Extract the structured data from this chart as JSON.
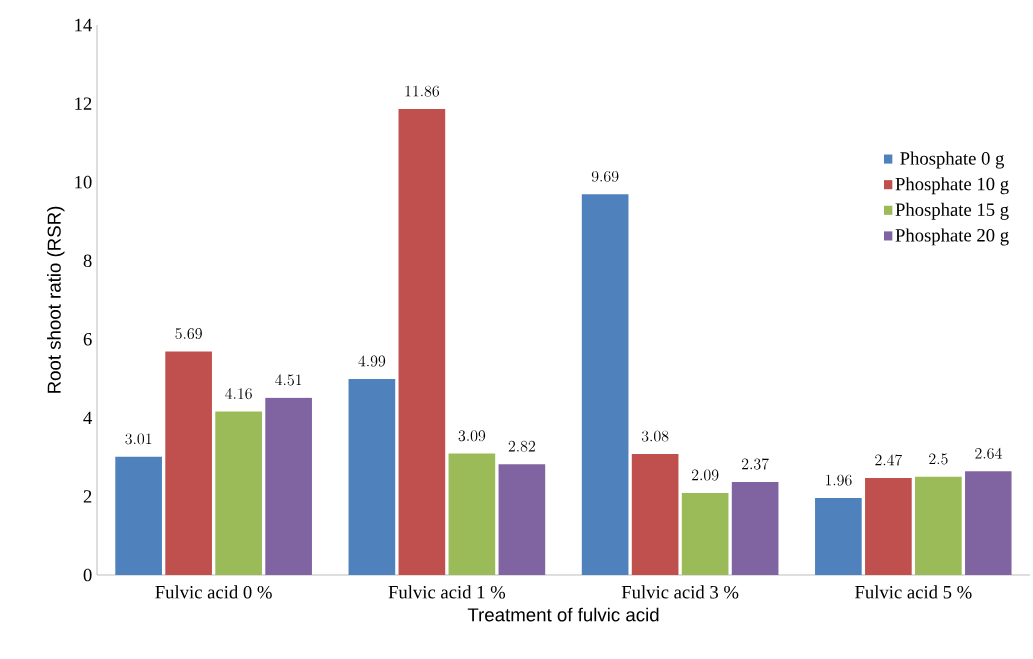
{
  "chart_data": {
    "type": "bar",
    "xlabel": "Treatment of fulvic acid",
    "ylabel": "Root shoot ratio (RSR)",
    "categories": [
      "Fulvic acid 0 %",
      "Fulvic acid 1 %",
      "Fulvic acid 3 %",
      "Fulvic acid 5 %"
    ],
    "series": [
      {
        "name": "Phosphate 0 g",
        "color": "#4f81bd",
        "values": [
          3.01,
          4.99,
          9.69,
          1.96
        ]
      },
      {
        "name": "Phosphate 10 g",
        "color": "#c0504d",
        "values": [
          5.69,
          11.86,
          3.08,
          2.47
        ]
      },
      {
        "name": "Phosphate 15 g",
        "color": "#9bbb59",
        "values": [
          4.16,
          3.09,
          2.09,
          2.5
        ]
      },
      {
        "name": "Phosphate 20 g",
        "color": "#8064a2",
        "values": [
          4.51,
          2.82,
          2.37,
          2.64
        ]
      }
    ],
    "ylim": [
      0,
      14
    ],
    "yticks": [
      0,
      2,
      4,
      6,
      8,
      10,
      12,
      14
    ],
    "data_labels": true,
    "legend": "right",
    "grid": false
  }
}
